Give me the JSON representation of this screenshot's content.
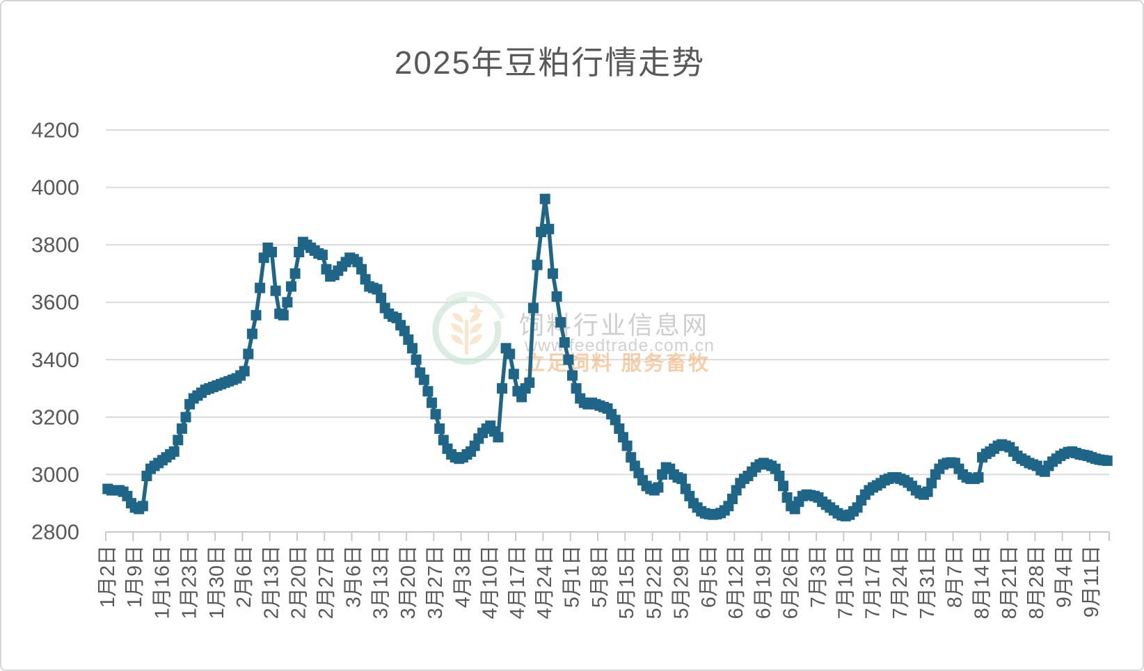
{
  "title": "2025年豆粕行情走势",
  "watermark": {
    "site_name": "饲料行业信息网",
    "url": "www.feedtrade.com.cn",
    "slogan": "立足饲料    服务畜牧",
    "logo_green": "#c9e2d4",
    "logo_green_light": "#deede4",
    "logo_wheat": "#f8d9b4"
  },
  "colors": {
    "series": "#1f6587",
    "grid": "#dadada",
    "axis": "#c8c8c8",
    "text": "#595959"
  },
  "chart_data": {
    "type": "line",
    "title": "2025年豆粕行情走势",
    "xlabel": "",
    "ylabel": "",
    "ylim": [
      2800,
      4200
    ],
    "yticks": [
      2800,
      3000,
      3200,
      3400,
      3600,
      3800,
      4000,
      4200
    ],
    "grid": true,
    "legend": "none",
    "marker": "square",
    "tick_every": 7,
    "x_tick_labels": [
      "1月2日",
      "1月9日",
      "1月16日",
      "1月23日",
      "1月30日",
      "2月6日",
      "2月13日",
      "2月20日",
      "2月27日",
      "3月6日",
      "3月13日",
      "3月20日",
      "3月27日",
      "4月3日",
      "4月10日",
      "4月17日",
      "4月24日",
      "5月1日",
      "5月8日",
      "5月15日",
      "5月22日",
      "5月29日",
      "6月5日",
      "6月12日",
      "6月19日",
      "6月26日",
      "7月3日",
      "7月10日",
      "7月17日",
      "7月24日",
      "7月31日",
      "8月7日",
      "8月14日",
      "8月21日",
      "8月28日",
      "9月4日",
      "9月11日"
    ],
    "values": [
      2950,
      2945,
      2945,
      2945,
      2940,
      2925,
      2900,
      2885,
      2880,
      2890,
      2995,
      3020,
      3030,
      3040,
      3050,
      3060,
      3070,
      3080,
      3120,
      3160,
      3200,
      3245,
      3265,
      3275,
      3285,
      3295,
      3300,
      3305,
      3310,
      3315,
      3320,
      3325,
      3330,
      3335,
      3345,
      3360,
      3420,
      3490,
      3555,
      3650,
      3755,
      3790,
      3775,
      3640,
      3560,
      3555,
      3600,
      3655,
      3700,
      3775,
      3810,
      3800,
      3790,
      3780,
      3770,
      3765,
      3715,
      3690,
      3695,
      3710,
      3725,
      3740,
      3755,
      3750,
      3740,
      3715,
      3680,
      3655,
      3650,
      3645,
      3615,
      3580,
      3560,
      3550,
      3545,
      3520,
      3500,
      3470,
      3440,
      3400,
      3355,
      3330,
      3290,
      3250,
      3210,
      3160,
      3120,
      3090,
      3070,
      3060,
      3055,
      3060,
      3070,
      3080,
      3100,
      3125,
      3145,
      3160,
      3170,
      3150,
      3130,
      3300,
      3440,
      3420,
      3350,
      3290,
      3270,
      3300,
      3320,
      3580,
      3730,
      3845,
      3960,
      3855,
      3700,
      3620,
      3530,
      3460,
      3400,
      3345,
      3300,
      3265,
      3250,
      3245,
      3250,
      3245,
      3240,
      3235,
      3230,
      3210,
      3190,
      3160,
      3130,
      3100,
      3060,
      3030,
      3005,
      2980,
      2960,
      2950,
      2945,
      2955,
      3000,
      3025,
      3020,
      3000,
      2990,
      2985,
      2950,
      2925,
      2900,
      2885,
      2872,
      2865,
      2862,
      2860,
      2862,
      2866,
      2875,
      2890,
      2915,
      2945,
      2970,
      2985,
      2995,
      3010,
      3025,
      3035,
      3040,
      3035,
      3030,
      3020,
      2995,
      2960,
      2920,
      2890,
      2880,
      2905,
      2925,
      2930,
      2928,
      2925,
      2920,
      2905,
      2895,
      2885,
      2875,
      2865,
      2858,
      2855,
      2860,
      2872,
      2885,
      2910,
      2930,
      2945,
      2955,
      2962,
      2970,
      2980,
      2985,
      2990,
      2990,
      2985,
      2980,
      2972,
      2960,
      2945,
      2935,
      2930,
      2940,
      2970,
      3000,
      3020,
      3035,
      3040,
      3042,
      3040,
      3020,
      3000,
      2990,
      2985,
      2985,
      2990,
      3060,
      3072,
      3080,
      3090,
      3100,
      3105,
      3100,
      3095,
      3080,
      3065,
      3055,
      3048,
      3040,
      3035,
      3030,
      3015,
      3010,
      3030,
      3045,
      3055,
      3065,
      3072,
      3078,
      3080,
      3075,
      3070,
      3068,
      3065,
      3060,
      3055,
      3052,
      3050,
      3048
    ]
  }
}
